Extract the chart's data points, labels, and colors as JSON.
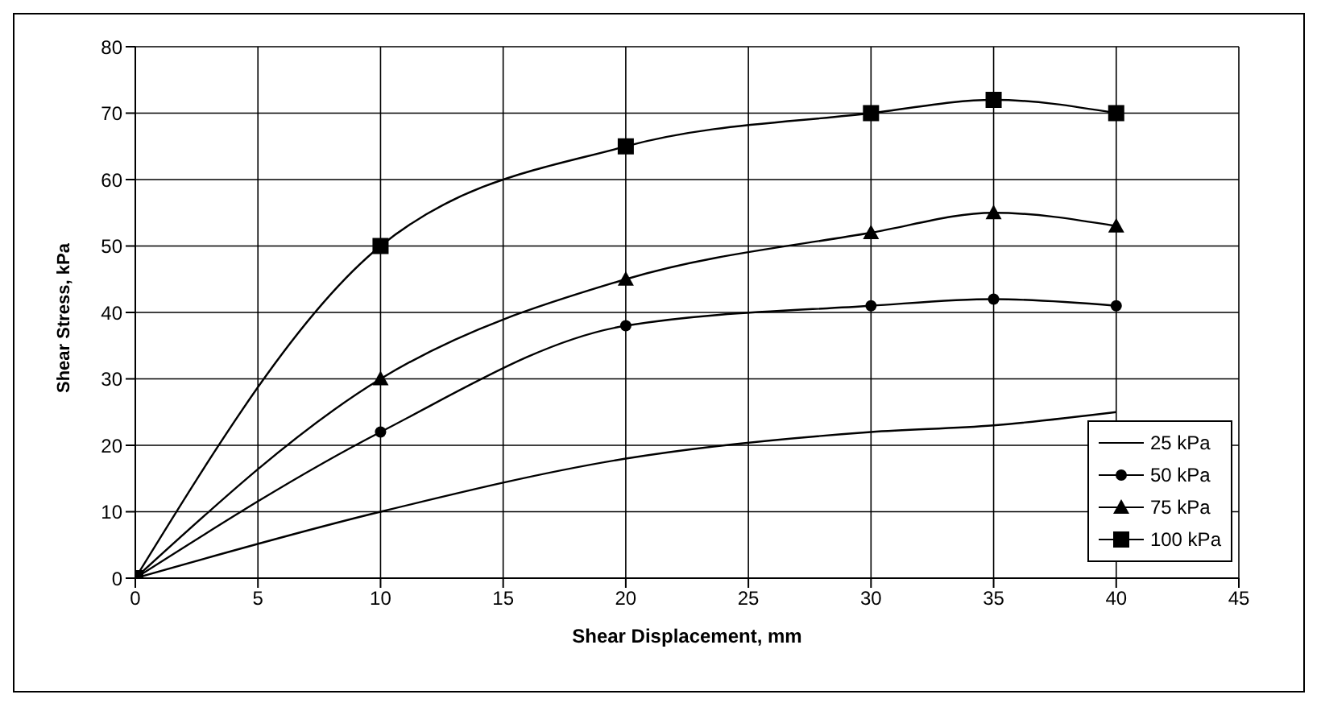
{
  "chart_data": {
    "type": "line",
    "xlabel": "Shear Displacement, mm",
    "ylabel": "Shear Stress, kPa",
    "x": [
      0,
      10,
      20,
      30,
      35,
      40
    ],
    "series": [
      {
        "name": "25 kPa",
        "color": "#000000",
        "values": [
          0,
          10,
          18,
          22,
          23,
          25
        ],
        "marker": "none"
      },
      {
        "name": "50 kPa",
        "color": "#000000",
        "values": [
          0,
          22,
          38,
          41,
          42,
          41
        ],
        "marker": "circle"
      },
      {
        "name": "75 kPa",
        "color": "#000000",
        "values": [
          0,
          30,
          45,
          52,
          55,
          53
        ],
        "marker": "triangle"
      },
      {
        "name": "100 kPa",
        "color": "#000000",
        "values": [
          0,
          50,
          65,
          70,
          72,
          70
        ],
        "marker": "square"
      }
    ],
    "xlim": [
      0,
      45
    ],
    "xticks": [
      0,
      5,
      10,
      15,
      20,
      25,
      30,
      35,
      40,
      45
    ],
    "ylim": [
      0,
      80
    ],
    "yticks": [
      0,
      10,
      20,
      30,
      40,
      50,
      60,
      70,
      80
    ],
    "grid": true,
    "legend": "bottom right",
    "line_style": "solid"
  }
}
